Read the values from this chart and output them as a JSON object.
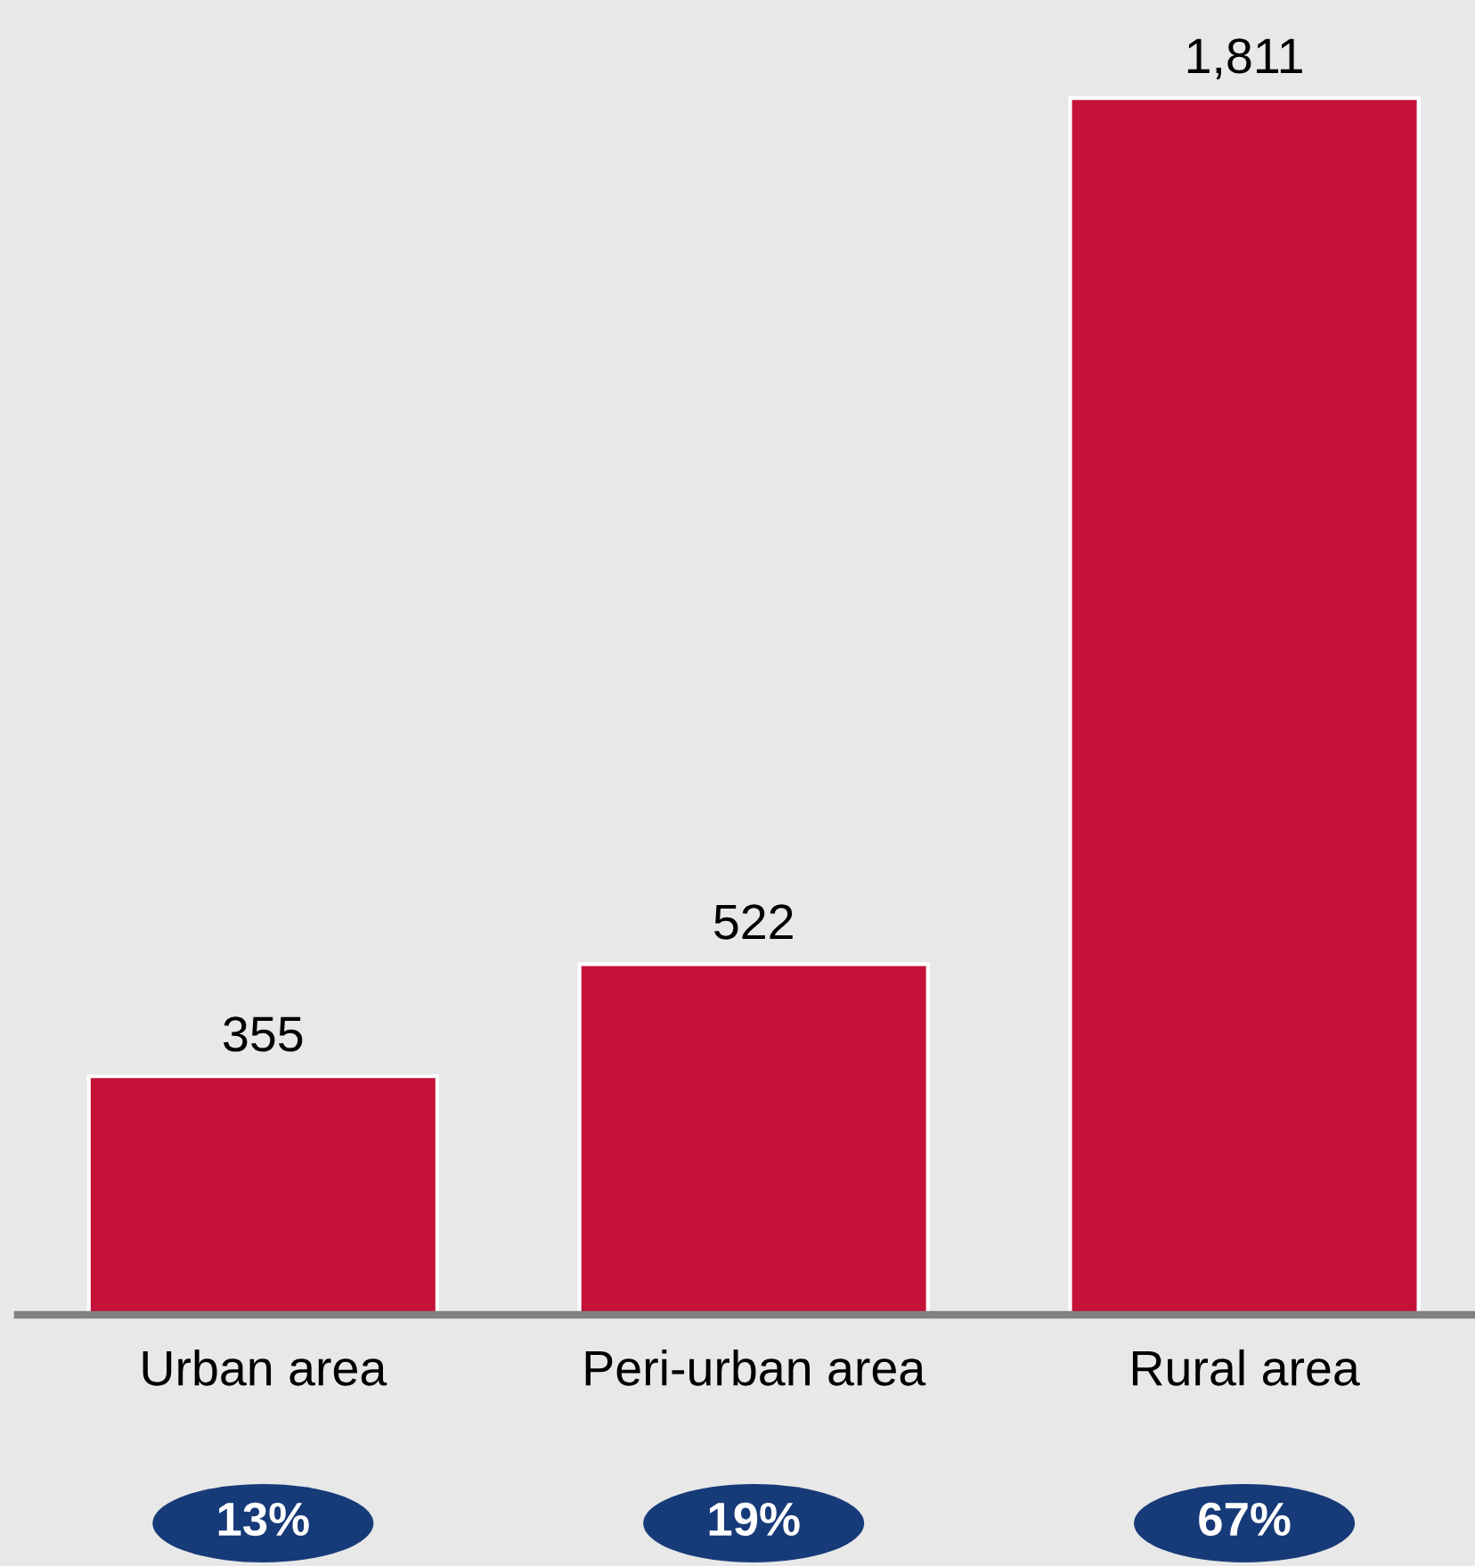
{
  "chart_data": {
    "type": "bar",
    "categories": [
      "Urban area",
      "Peri-urban area",
      "Rural area"
    ],
    "values": [
      355,
      522,
      1811
    ],
    "color": "#c41239",
    "value_labels": [
      "355",
      "522",
      "1,811"
    ],
    "grid": false,
    "legend": false,
    "tick_labels": "x",
    "annotations": [
      "13%",
      "19%",
      "67%"
    ]
  }
}
